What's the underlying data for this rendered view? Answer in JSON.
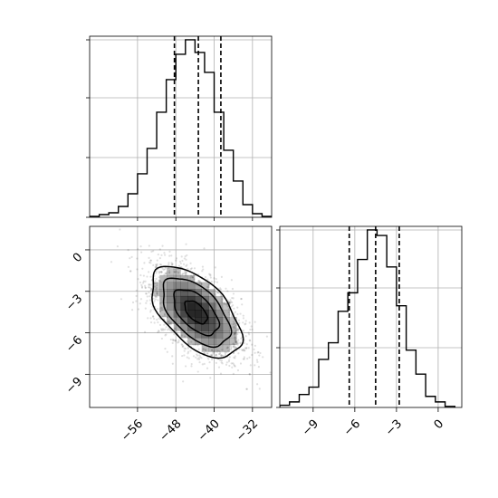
{
  "chart_data": {
    "type": "corner",
    "title": "",
    "parameters": [
      {
        "name": "",
        "range": [
          -66,
          -28
        ],
        "ticks": [
          -56,
          -48,
          -40,
          -32
        ],
        "quantiles": [
          -48.3,
          -43.3,
          -38.6
        ]
      },
      {
        "name": "",
        "range": [
          -11.4,
          1.7
        ],
        "ticks": [
          -9,
          -6,
          -3,
          0
        ],
        "quantiles": [
          -6.4,
          -4.5,
          -2.8
        ]
      }
    ],
    "marginals": [
      {
        "type": "step-histogram",
        "parameter": 0,
        "bin_edges": [
          -66,
          -64,
          -62,
          -60,
          -58,
          -56,
          -54,
          -52,
          -50,
          -48,
          -46,
          -44,
          -42,
          -40,
          -38,
          -36,
          -34,
          -32,
          -30,
          -28
        ],
        "counts": [
          0.005,
          0.015,
          0.025,
          0.06,
          0.13,
          0.24,
          0.38,
          0.58,
          0.76,
          0.9,
          0.98,
          0.91,
          0.8,
          0.58,
          0.37,
          0.2,
          0.07,
          0.02,
          0.005
        ],
        "grid": true
      },
      {
        "type": "step-histogram",
        "parameter": 1,
        "bin_edges": [
          -11.4,
          -10.7,
          -10.0,
          -9.3,
          -8.6,
          -7.9,
          -7.2,
          -6.5,
          -5.8,
          -5.1,
          -4.4,
          -3.7,
          -3.0,
          -2.3,
          -1.6,
          -0.9,
          -0.2,
          0.5,
          1.2
        ],
        "counts": [
          0.012,
          0.03,
          0.07,
          0.11,
          0.26,
          0.35,
          0.52,
          0.62,
          0.8,
          0.96,
          0.93,
          0.76,
          0.55,
          0.31,
          0.18,
          0.06,
          0.03,
          0.006
        ],
        "grid": true
      }
    ],
    "joint": {
      "type": "2d-density",
      "x_parameter": 0,
      "y_parameter": 1,
      "center": [
        -43.8,
        -4.5
      ],
      "sigma": [
        4.7,
        1.65
      ],
      "correlation": -0.55,
      "contour_levels": [
        "0.5 sigma",
        "1 sigma",
        "1.5 sigma",
        "2 sigma"
      ],
      "grid": true
    },
    "colors": {
      "line": "#000000",
      "grid": "#b0b0b0",
      "density": "#000000"
    }
  }
}
